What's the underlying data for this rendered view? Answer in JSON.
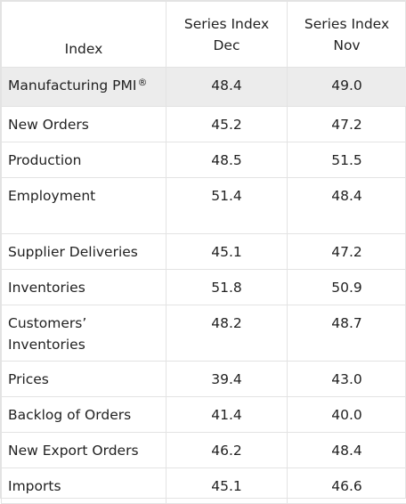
{
  "headers": {
    "index": "Index",
    "dec": [
      "Series Index",
      "Dec"
    ],
    "nov": [
      "Series Index",
      "Nov"
    ]
  },
  "rows": [
    {
      "index": "Manufacturing PMI",
      "dec": "48.4",
      "nov": "49.0"
    },
    {
      "index": "New Orders",
      "dec": "45.2",
      "nov": "47.2"
    },
    {
      "index": "Production",
      "dec": "48.5",
      "nov": "51.5"
    },
    {
      "index": "Employment",
      "dec": "51.4",
      "nov": "48.4"
    },
    {
      "index": "Supplier Deliveries",
      "dec": "45.1",
      "nov": "47.2"
    },
    {
      "index": "Inventories",
      "dec": "51.8",
      "nov": "50.9"
    },
    {
      "index": "Customers’ Inventories",
      "dec": "48.2",
      "nov": "48.7"
    },
    {
      "index": "Prices",
      "dec": "39.4",
      "nov": "43.0"
    },
    {
      "index": "Backlog of Orders",
      "dec": "41.4",
      "nov": "40.0"
    },
    {
      "index": "New Export Orders",
      "dec": "46.2",
      "nov": "48.4"
    },
    {
      "index": "Imports",
      "dec": "45.1",
      "nov": "46.6"
    }
  ],
  "registered_mark": "®",
  "colors": {
    "highlight_row": "#ececec",
    "border": "#e3e3e3",
    "text": "#222222"
  }
}
